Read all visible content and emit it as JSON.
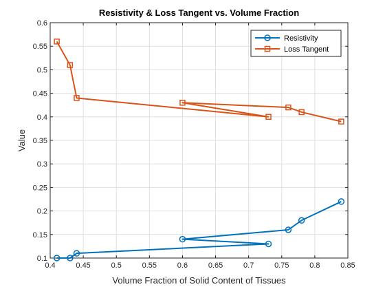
{
  "chart_data": {
    "type": "line",
    "title": "Resistivity & Loss Tangent vs. Volume Fraction",
    "xlabel": "Volume Fraction of Solid Content of Tissues",
    "ylabel": "Value",
    "xlim": [
      0.4,
      0.85
    ],
    "ylim": [
      0.1,
      0.6
    ],
    "xticks": [
      "0.4",
      "0.45",
      "0.5",
      "0.55",
      "0.6",
      "0.65",
      "0.7",
      "0.75",
      "0.8",
      "0.85"
    ],
    "yticks": [
      "0.1",
      "0.15",
      "0.2",
      "0.25",
      "0.3",
      "0.35",
      "0.4",
      "0.45",
      "0.5",
      "0.55",
      "0.6"
    ],
    "xtick_values": [
      0.4,
      0.45,
      0.5,
      0.55,
      0.6,
      0.65,
      0.7,
      0.75,
      0.8,
      0.85
    ],
    "ytick_values": [
      0.1,
      0.15,
      0.2,
      0.25,
      0.3,
      0.35,
      0.4,
      0.45,
      0.5,
      0.55,
      0.6
    ],
    "grid": true,
    "legend_position": "top-right",
    "series": [
      {
        "name": "Resistivity",
        "color": "#0072BD",
        "marker": "circle",
        "x": [
          0.41,
          0.43,
          0.44,
          0.73,
          0.6,
          0.76,
          0.78,
          0.84
        ],
        "y": [
          0.1,
          0.1,
          0.11,
          0.13,
          0.14,
          0.16,
          0.18,
          0.22
        ]
      },
      {
        "name": "Loss Tangent",
        "color": "#D95319",
        "marker": "square",
        "x": [
          0.41,
          0.43,
          0.44,
          0.73,
          0.6,
          0.76,
          0.78,
          0.84
        ],
        "y": [
          0.56,
          0.51,
          0.44,
          0.4,
          0.43,
          0.42,
          0.41,
          0.39
        ]
      }
    ]
  }
}
